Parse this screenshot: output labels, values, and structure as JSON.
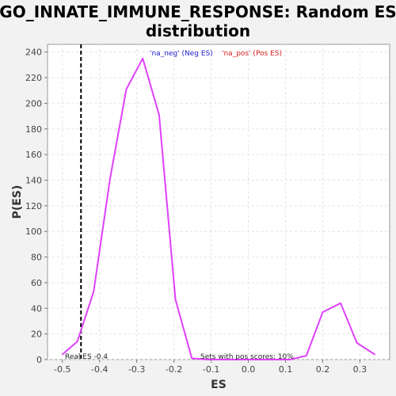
{
  "chart_data": {
    "type": "line",
    "title_lines": [
      "GO_INNATE_IMMUNE_RESPONSE: Random ES",
      "distribution"
    ],
    "xlabel": "ES",
    "ylabel": "P(ES)",
    "xlim": [
      -0.54,
      0.38
    ],
    "ylim": [
      0,
      246
    ],
    "x_ticks": [
      -0.5,
      -0.4,
      -0.3,
      -0.2,
      -0.1,
      0.0,
      0.1,
      0.2,
      0.3
    ],
    "x_tick_labels": [
      "-0.5",
      "-0.4",
      "-0.3",
      "-0.2",
      "-0.1",
      "0.0",
      "0.1",
      "0.2",
      "0.3"
    ],
    "y_ticks": [
      0,
      20,
      40,
      60,
      80,
      100,
      120,
      140,
      160,
      180,
      200,
      220,
      240
    ],
    "y_tick_labels": [
      "0",
      "20",
      "40",
      "60",
      "80",
      "100",
      "120",
      "140",
      "160",
      "180",
      "200",
      "220",
      "240"
    ],
    "grid": true,
    "series": [
      {
        "color": "#e040fb",
        "points": [
          [
            -0.5,
            4
          ],
          [
            -0.46,
            14
          ],
          [
            -0.416,
            53
          ],
          [
            -0.372,
            141
          ],
          [
            -0.328,
            211
          ],
          [
            -0.284,
            235
          ],
          [
            -0.24,
            191
          ],
          [
            -0.196,
            47
          ],
          [
            -0.152,
            1
          ],
          [
            -0.108,
            0
          ],
          [
            -0.064,
            0
          ],
          [
            -0.02,
            0
          ],
          [
            0.024,
            0
          ],
          [
            0.068,
            0
          ],
          [
            0.112,
            0
          ],
          [
            0.156,
            3
          ],
          [
            0.2,
            37
          ],
          [
            0.248,
            44
          ],
          [
            0.292,
            13
          ],
          [
            0.34,
            4
          ]
        ]
      }
    ],
    "real_es": -0.45,
    "legend": {
      "placement": "top",
      "entries": [
        {
          "label": "'na_neg' (Neg ES)",
          "color": "#2222cc"
        },
        {
          "label": "'na_pos' (Pos ES)",
          "color": "#dd2222"
        }
      ]
    },
    "annotations": {
      "real_es_label": "Real ES -0.4",
      "pos_scores_label": "Sets with pos scores: 10%"
    }
  }
}
